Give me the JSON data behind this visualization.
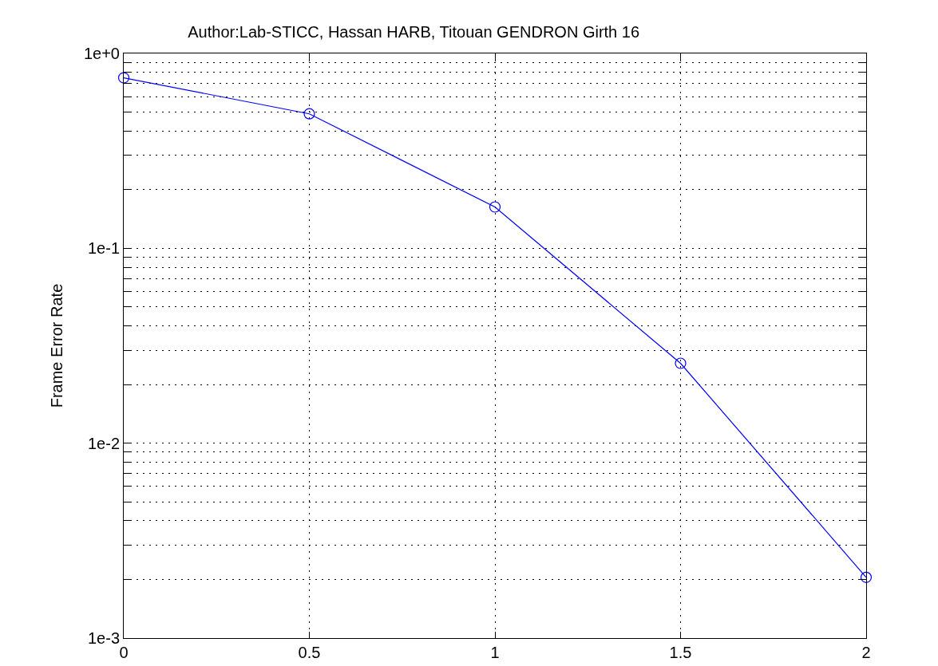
{
  "chart_data": {
    "type": "line",
    "title": "Author:Lab-STICC, Hassan HARB, Titouan GENDRON Girth 16",
    "ylabel": "Frame Error Rate",
    "x": [
      0,
      0.5,
      1,
      1.5,
      2
    ],
    "series": [
      {
        "color": "#0000ff",
        "values": [
          0.75,
          0.49,
          0.163,
          0.0257,
          0.00205
        ]
      }
    ],
    "xlim": [
      0,
      2
    ],
    "xticks": [
      0,
      0.5,
      1,
      1.5,
      2
    ],
    "ylim": [
      0.001,
      1
    ],
    "yticks": [
      {
        "value": 0.001,
        "label": "1e-3"
      },
      {
        "value": 0.002,
        "label": null
      },
      {
        "value": 0.003,
        "label": null
      },
      {
        "value": 0.004,
        "label": null
      },
      {
        "value": 0.005,
        "label": null
      },
      {
        "value": 0.006,
        "label": null
      },
      {
        "value": 0.007,
        "label": null
      },
      {
        "value": 0.008,
        "label": null
      },
      {
        "value": 0.009,
        "label": null
      },
      {
        "value": 0.01,
        "label": "1e-2"
      },
      {
        "value": 0.02,
        "label": null
      },
      {
        "value": 0.03,
        "label": null
      },
      {
        "value": 0.04,
        "label": null
      },
      {
        "value": 0.05,
        "label": null
      },
      {
        "value": 0.06,
        "label": null
      },
      {
        "value": 0.07,
        "label": null
      },
      {
        "value": 0.08,
        "label": null
      },
      {
        "value": 0.09,
        "label": null
      },
      {
        "value": 0.1,
        "label": "1e-1"
      },
      {
        "value": 0.2,
        "label": null
      },
      {
        "value": 0.3,
        "label": null
      },
      {
        "value": 0.4,
        "label": null
      },
      {
        "value": 0.5,
        "label": null
      },
      {
        "value": 0.6,
        "label": null
      },
      {
        "value": 0.7,
        "label": null
      },
      {
        "value": 0.8,
        "label": null
      },
      {
        "value": 0.9,
        "label": null
      },
      {
        "value": 1,
        "label": "1e+0"
      }
    ],
    "log": "y",
    "grid": true,
    "marker": "circle",
    "line_style": "solid"
  }
}
